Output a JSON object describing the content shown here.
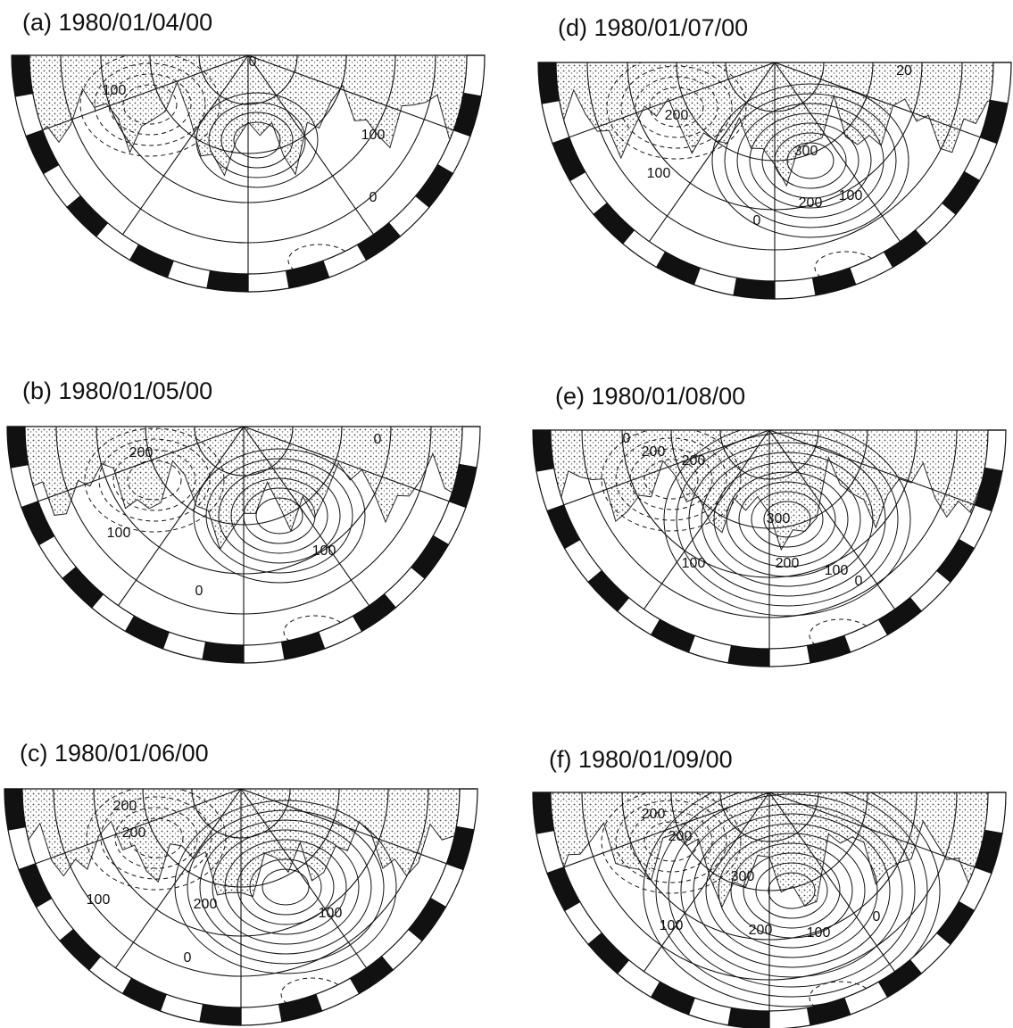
{
  "panels": [
    {
      "title": "(a) 1980/01/04/00",
      "contour_labels": [
        "0",
        "100",
        "100",
        "0"
      ]
    },
    {
      "title": "(b) 1980/01/05/00",
      "contour_labels": [
        "200",
        "100",
        "100",
        "0",
        "0"
      ]
    },
    {
      "title": "(c) 1980/01/06/00",
      "contour_labels": [
        "200",
        "200",
        "100",
        "200",
        "100",
        "0"
      ]
    },
    {
      "title": "(d) 1980/01/07/00",
      "contour_labels": [
        "200",
        "100",
        "300",
        "200",
        "100",
        "0",
        "20"
      ]
    },
    {
      "title": "(e) 1980/01/08/00",
      "contour_labels": [
        "200",
        "200",
        "300",
        "100",
        "200",
        "100",
        "0",
        "0"
      ]
    },
    {
      "title": "(f) 1980/01/09/00",
      "contour_labels": [
        "200",
        "200",
        "300",
        "100",
        "200",
        "100",
        "0"
      ]
    }
  ]
}
